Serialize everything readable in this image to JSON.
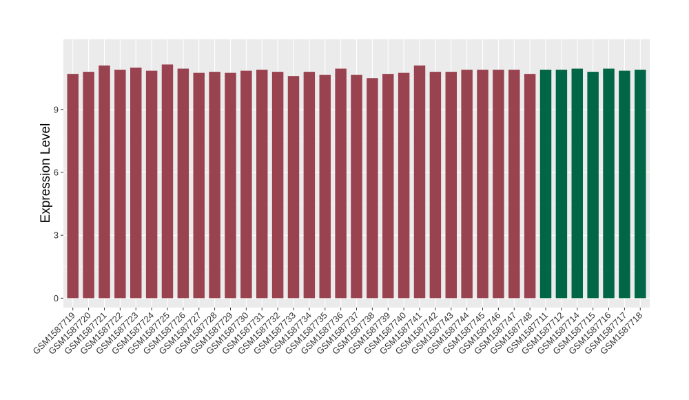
{
  "chart_data": {
    "type": "bar",
    "ylabel": "Expression Level",
    "xlabel": "",
    "ylim": [
      -0.45,
      12.35
    ],
    "yticks": [
      0,
      3,
      6,
      9
    ],
    "grid": true,
    "legend": "none",
    "colors": {
      "group_a": "#9A4350",
      "group_b": "#006645",
      "panel_bg": "#EBEBEB",
      "grid": "#FFFFFF"
    },
    "categories": [
      "GSM1587719",
      "GSM1587720",
      "GSM1587721",
      "GSM1587722",
      "GSM1587723",
      "GSM1587724",
      "GSM1587725",
      "GSM1587726",
      "GSM1587727",
      "GSM1587728",
      "GSM1587729",
      "GSM1587730",
      "GSM1587731",
      "GSM1587732",
      "GSM1587733",
      "GSM1587734",
      "GSM1587735",
      "GSM1587736",
      "GSM1587737",
      "GSM1587738",
      "GSM1587739",
      "GSM1587740",
      "GSM1587741",
      "GSM1587742",
      "GSM1587743",
      "GSM1587744",
      "GSM1587745",
      "GSM1587746",
      "GSM1587747",
      "GSM1587748",
      "GSM1587711",
      "GSM1587712",
      "GSM1587714",
      "GSM1587715",
      "GSM1587716",
      "GSM1587717",
      "GSM1587718"
    ],
    "values": [
      10.7,
      10.8,
      11.1,
      10.9,
      11.0,
      10.85,
      11.15,
      10.95,
      10.75,
      10.8,
      10.75,
      10.85,
      10.9,
      10.8,
      10.6,
      10.8,
      10.65,
      10.95,
      10.65,
      10.5,
      10.7,
      10.75,
      11.1,
      10.8,
      10.8,
      10.9,
      10.9,
      10.9,
      10.9,
      10.7,
      10.9,
      10.9,
      10.95,
      10.8,
      10.95,
      10.85,
      10.9
    ],
    "groups": [
      "a",
      "a",
      "a",
      "a",
      "a",
      "a",
      "a",
      "a",
      "a",
      "a",
      "a",
      "a",
      "a",
      "a",
      "a",
      "a",
      "a",
      "a",
      "a",
      "a",
      "a",
      "a",
      "a",
      "a",
      "a",
      "a",
      "a",
      "a",
      "a",
      "a",
      "b",
      "b",
      "b",
      "b",
      "b",
      "b",
      "b"
    ]
  }
}
